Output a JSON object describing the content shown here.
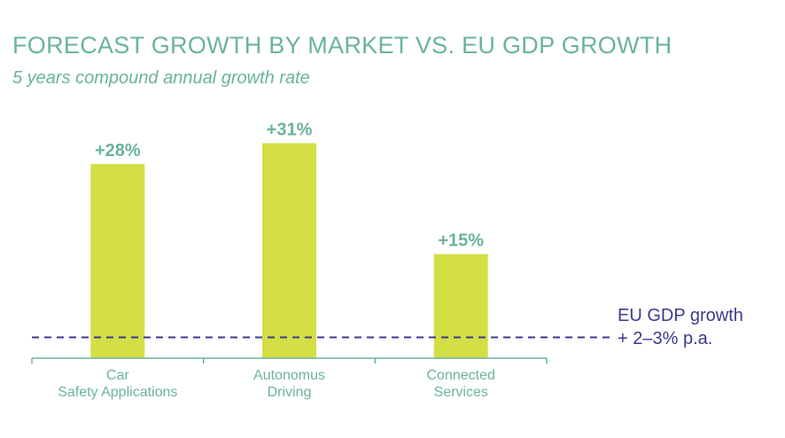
{
  "title": "FORECAST GROWTH BY MARKET VS. EU GDP GROWTH",
  "subtitle": "5 years compound annual growth rate",
  "colors": {
    "title": "#6ab49b",
    "bar": "#d4df45",
    "label": "#6ab49b",
    "axis": "#6ab49b",
    "reference": "#3d3a8f"
  },
  "chart_data": {
    "type": "bar",
    "title": "FORECAST GROWTH BY MARKET VS. EU GDP GROWTH",
    "subtitle": "5 years compound annual growth rate",
    "categories": [
      [
        "Car",
        "Safety Applications"
      ],
      [
        "Autonomus",
        "Driving"
      ],
      [
        "Connected",
        "Services"
      ]
    ],
    "values": [
      28,
      31,
      15
    ],
    "data_labels": [
      "+28%",
      "+31%",
      "+15%"
    ],
    "ylim": [
      0,
      34
    ],
    "grid": false,
    "reference_line": {
      "value": 3,
      "style": "dashed",
      "label_lines": [
        "EU GDP growth",
        "+ 2–3% p.a."
      ]
    }
  }
}
